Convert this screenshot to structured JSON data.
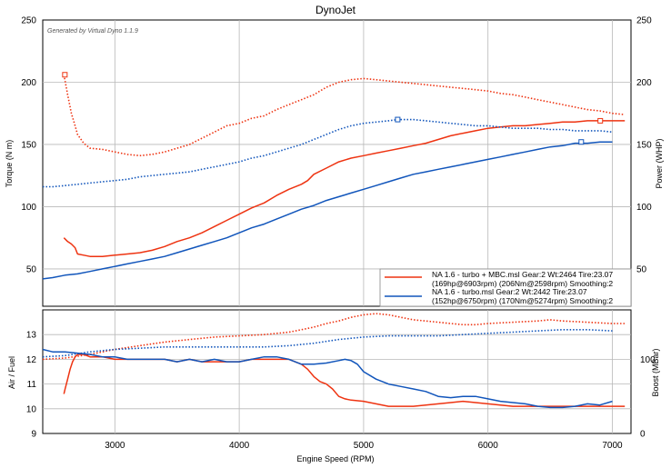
{
  "chart_data": {
    "type": "line",
    "title": "DynoJet",
    "generator_note": "Generated by Virtual Dyno 1.1.9",
    "xlabel": "Engine Speed (RPM)",
    "xlim": [
      2420,
      7150
    ],
    "xticks": [
      3000,
      4000,
      5000,
      6000,
      7000
    ],
    "grid": true,
    "legend_position": "bottom-right",
    "colors": {
      "red": "#ee3311",
      "blue": "#1155bb"
    },
    "top_panel": {
      "ylabel_left": "Torque (N m)",
      "ylabel_right": "Power (WHP)",
      "ylim": [
        20,
        250
      ],
      "yticks": [
        50,
        100,
        150,
        200,
        250
      ],
      "legend": [
        {
          "line1": "NA 1.6 - turbo + MBC.msl Gear:2 Wt:2464 Tire:23.07",
          "line2": "(169hp@6903rpm) (206Nm@2598rpm) Smoothing:2",
          "color": "#ee3311"
        },
        {
          "line1": "NA 1.6 - turbo.msl Gear:2 Wt:2442 Tire:23.07",
          "line2": "(152hp@6750rpm) (170Nm@5274rpm) Smoothing:2",
          "color": "#1155bb"
        }
      ],
      "series": [
        {
          "kind": "power",
          "color": "#ee3311",
          "style": "solid",
          "x": [
            2590,
            2620,
            2650,
            2680,
            2700,
            2750,
            2800,
            2900,
            3000,
            3100,
            3200,
            3300,
            3400,
            3500,
            3600,
            3700,
            3800,
            3900,
            4000,
            4100,
            4200,
            4300,
            4400,
            4500,
            4550,
            4600,
            4700,
            4800,
            4900,
            5000,
            5100,
            5200,
            5300,
            5400,
            5500,
            5600,
            5700,
            5800,
            5900,
            6000,
            6100,
            6200,
            6300,
            6400,
            6500,
            6600,
            6700,
            6800,
            6900,
            7000,
            7100
          ],
          "y": [
            75,
            72,
            70,
            67,
            62,
            61,
            60,
            60,
            61,
            62,
            63,
            65,
            68,
            72,
            75,
            79,
            84,
            89,
            94,
            99,
            103,
            109,
            114,
            118,
            121,
            126,
            131,
            136,
            139,
            141,
            143,
            145,
            147,
            149,
            151,
            154,
            157,
            159,
            161,
            163,
            164,
            165,
            165,
            166,
            167,
            168,
            168,
            169,
            169,
            169,
            169
          ]
        },
        {
          "kind": "torque",
          "color": "#ee3311",
          "style": "dotted",
          "x": [
            2590,
            2620,
            2650,
            2680,
            2700,
            2750,
            2800,
            2900,
            3000,
            3100,
            3200,
            3300,
            3400,
            3500,
            3600,
            3700,
            3800,
            3900,
            4000,
            4100,
            4200,
            4300,
            4400,
            4500,
            4600,
            4700,
            4800,
            4900,
            5000,
            5100,
            5200,
            5300,
            5400,
            5500,
            5600,
            5700,
            5800,
            5900,
            6000,
            6100,
            6200,
            6300,
            6400,
            6500,
            6600,
            6700,
            6800,
            6900,
            7000,
            7100
          ],
          "y": [
            206,
            190,
            175,
            165,
            158,
            151,
            147,
            146,
            144,
            142,
            141,
            142,
            144,
            147,
            150,
            155,
            160,
            165,
            167,
            171,
            173,
            178,
            182,
            186,
            190,
            196,
            200,
            202,
            203,
            202,
            201,
            200,
            199,
            198,
            197,
            196,
            195,
            194,
            193,
            191,
            190,
            188,
            186,
            184,
            182,
            180,
            178,
            177,
            175,
            174
          ]
        },
        {
          "kind": "power",
          "color": "#1155bb",
          "style": "solid",
          "x": [
            2420,
            2500,
            2600,
            2700,
            2800,
            2900,
            3000,
            3100,
            3200,
            3300,
            3400,
            3500,
            3600,
            3700,
            3800,
            3900,
            4000,
            4100,
            4200,
            4300,
            4400,
            4500,
            4600,
            4700,
            4800,
            4900,
            5000,
            5100,
            5200,
            5300,
            5400,
            5500,
            5600,
            5700,
            5800,
            5900,
            6000,
            6100,
            6200,
            6300,
            6400,
            6500,
            6600,
            6700,
            6800,
            6900,
            7000
          ],
          "y": [
            42,
            43,
            45,
            46,
            48,
            50,
            52,
            54,
            56,
            58,
            60,
            63,
            66,
            69,
            72,
            75,
            79,
            83,
            86,
            90,
            94,
            98,
            101,
            105,
            108,
            111,
            114,
            117,
            120,
            123,
            126,
            128,
            130,
            132,
            134,
            136,
            138,
            140,
            142,
            144,
            146,
            148,
            149,
            151,
            151,
            152,
            152
          ]
        },
        {
          "kind": "torque",
          "color": "#1155bb",
          "style": "dotted",
          "x": [
            2420,
            2500,
            2600,
            2700,
            2800,
            2900,
            3000,
            3100,
            3200,
            3300,
            3400,
            3500,
            3600,
            3700,
            3800,
            3900,
            4000,
            4100,
            4200,
            4300,
            4400,
            4500,
            4600,
            4700,
            4800,
            4900,
            5000,
            5100,
            5200,
            5274,
            5300,
            5400,
            5500,
            5600,
            5700,
            5800,
            5900,
            6000,
            6100,
            6200,
            6300,
            6400,
            6500,
            6600,
            6700,
            6800,
            6900,
            7000
          ],
          "y": [
            116,
            116,
            117,
            118,
            119,
            120,
            121,
            122,
            124,
            125,
            126,
            127,
            128,
            130,
            132,
            134,
            136,
            139,
            141,
            144,
            147,
            150,
            154,
            158,
            162,
            165,
            167,
            168,
            169,
            170,
            170,
            170,
            169,
            168,
            167,
            166,
            165,
            165,
            164,
            163,
            163,
            163,
            162,
            162,
            161,
            161,
            161,
            160
          ]
        }
      ],
      "markers": [
        {
          "color": "#ee3311",
          "x": 2598,
          "y": 206
        },
        {
          "color": "#ee3311",
          "x": 6903,
          "y": 169
        },
        {
          "color": "#1155bb",
          "x": 5274,
          "y": 170
        },
        {
          "color": "#1155bb",
          "x": 6750,
          "y": 152
        }
      ]
    },
    "bottom_panel": {
      "ylabel_left": "Air / Fuel",
      "ylabel_right": "Boost (MBar)",
      "ylim": [
        9,
        14
      ],
      "yticks": [
        9,
        10,
        11,
        12,
        13
      ],
      "right_ticks": [
        {
          "label": "100",
          "at": 12
        },
        {
          "label": "0",
          "at": 9
        }
      ],
      "series": [
        {
          "kind": "air_fuel",
          "color": "#ee3311",
          "style": "solid",
          "x": [
            2590,
            2600,
            2620,
            2640,
            2660,
            2680,
            2700,
            2750,
            2800,
            2900,
            3000,
            3100,
            3200,
            3300,
            3400,
            3500,
            3600,
            3700,
            3800,
            3900,
            4000,
            4100,
            4200,
            4300,
            4400,
            4500,
            4550,
            4600,
            4650,
            4700,
            4750,
            4800,
            4850,
            4900,
            5000,
            5100,
            5200,
            5300,
            5400,
            5500,
            5600,
            5700,
            5800,
            5900,
            6000,
            6100,
            6200,
            6300,
            6400,
            6500,
            6600,
            6700,
            6800,
            6900,
            7000,
            7100
          ],
          "y": [
            10.6,
            10.8,
            11.2,
            11.6,
            11.9,
            12.1,
            12.2,
            12.2,
            12.1,
            12.1,
            12.0,
            12.0,
            12.0,
            12.0,
            12.0,
            11.9,
            12.0,
            11.9,
            11.9,
            11.9,
            11.9,
            12.0,
            12.0,
            12.0,
            12.0,
            11.8,
            11.6,
            11.3,
            11.1,
            11.0,
            10.8,
            10.5,
            10.4,
            10.35,
            10.3,
            10.2,
            10.1,
            10.1,
            10.1,
            10.15,
            10.2,
            10.25,
            10.3,
            10.25,
            10.2,
            10.15,
            10.1,
            10.1,
            10.1,
            10.1,
            10.1,
            10.1,
            10.1,
            10.1,
            10.1,
            10.1
          ]
        },
        {
          "kind": "boost",
          "color": "#ee3311",
          "style": "dotted",
          "x": [
            2420,
            2600,
            2800,
            3000,
            3200,
            3400,
            3600,
            3800,
            4000,
            4200,
            4400,
            4500,
            4600,
            4700,
            4800,
            4900,
            5000,
            5100,
            5200,
            5300,
            5400,
            5500,
            5600,
            5700,
            5800,
            5900,
            6000,
            6200,
            6400,
            6500,
            6600,
            6800,
            7000,
            7100
          ],
          "y": [
            12.0,
            12.05,
            12.2,
            12.4,
            12.55,
            12.7,
            12.8,
            12.9,
            12.95,
            13.0,
            13.1,
            13.2,
            13.3,
            13.45,
            13.55,
            13.7,
            13.8,
            13.85,
            13.8,
            13.7,
            13.6,
            13.55,
            13.5,
            13.45,
            13.4,
            13.4,
            13.45,
            13.5,
            13.55,
            13.6,
            13.55,
            13.5,
            13.45,
            13.45
          ]
        },
        {
          "kind": "air_fuel",
          "color": "#1155bb",
          "style": "solid",
          "x": [
            2420,
            2500,
            2600,
            2700,
            2800,
            2900,
            3000,
            3100,
            3200,
            3300,
            3400,
            3500,
            3600,
            3700,
            3800,
            3900,
            4000,
            4100,
            4200,
            4300,
            4400,
            4500,
            4600,
            4700,
            4800,
            4850,
            4900,
            4950,
            5000,
            5100,
            5200,
            5300,
            5400,
            5500,
            5600,
            5700,
            5800,
            5900,
            6000,
            6100,
            6200,
            6300,
            6400,
            6500,
            6600,
            6700,
            6800,
            6900,
            7000
          ],
          "y": [
            12.4,
            12.3,
            12.3,
            12.25,
            12.2,
            12.1,
            12.1,
            12.0,
            12.0,
            12.0,
            12.0,
            11.9,
            12.0,
            11.9,
            12.0,
            11.9,
            11.9,
            12.0,
            12.1,
            12.1,
            12.0,
            11.8,
            11.8,
            11.85,
            11.95,
            12.0,
            11.95,
            11.8,
            11.5,
            11.2,
            11.0,
            10.9,
            10.8,
            10.7,
            10.5,
            10.45,
            10.5,
            10.5,
            10.4,
            10.3,
            10.25,
            10.2,
            10.1,
            10.05,
            10.05,
            10.1,
            10.2,
            10.15,
            10.3
          ]
        },
        {
          "kind": "boost",
          "color": "#1155bb",
          "style": "dotted",
          "x": [
            2420,
            2600,
            2800,
            3000,
            3200,
            3400,
            3600,
            3800,
            4000,
            4200,
            4400,
            4600,
            4800,
            5000,
            5200,
            5400,
            5600,
            5800,
            6000,
            6200,
            6400,
            6600,
            6800,
            7000
          ],
          "y": [
            12.1,
            12.15,
            12.3,
            12.4,
            12.45,
            12.5,
            12.5,
            12.5,
            12.5,
            12.5,
            12.55,
            12.65,
            12.8,
            12.9,
            12.95,
            12.95,
            12.95,
            13.0,
            13.05,
            13.1,
            13.15,
            13.2,
            13.2,
            13.15
          ]
        }
      ]
    }
  }
}
